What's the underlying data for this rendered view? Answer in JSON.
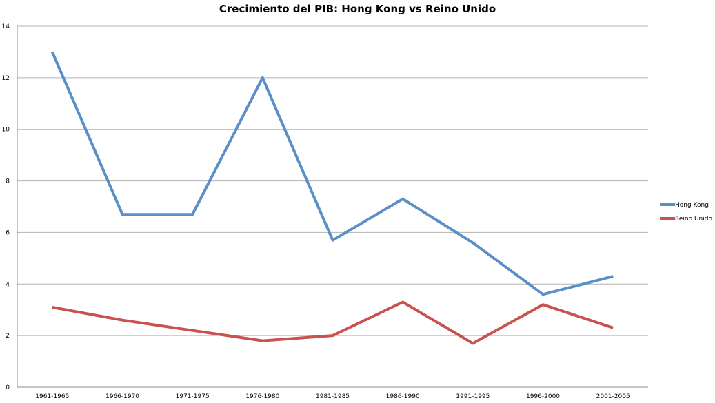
{
  "chart_data": {
    "type": "line",
    "title": "Crecimiento del PIB: Hong Kong vs Reino Unido",
    "xlabel": "",
    "ylabel": "",
    "categories": [
      "1961-1965",
      "1966-1970",
      "1971-1975",
      "1976-1980",
      "1981-1985",
      "1986-1990",
      "1991-1995",
      "1996-2000",
      "2001-2005"
    ],
    "ylim": [
      0,
      14
    ],
    "yticks": [
      0,
      2,
      4,
      6,
      8,
      10,
      12,
      14
    ],
    "grid": true,
    "legend_position": "right",
    "series": [
      {
        "name": "Hong Kong",
        "color": "#5b8fc7",
        "values": [
          13.0,
          6.7,
          6.7,
          12.0,
          5.7,
          7.3,
          5.6,
          3.6,
          4.3
        ]
      },
      {
        "name": "Reino Unido",
        "color": "#c9524f",
        "values": [
          3.1,
          2.6,
          2.2,
          1.8,
          2.0,
          3.3,
          1.7,
          3.2,
          2.3
        ]
      }
    ]
  }
}
